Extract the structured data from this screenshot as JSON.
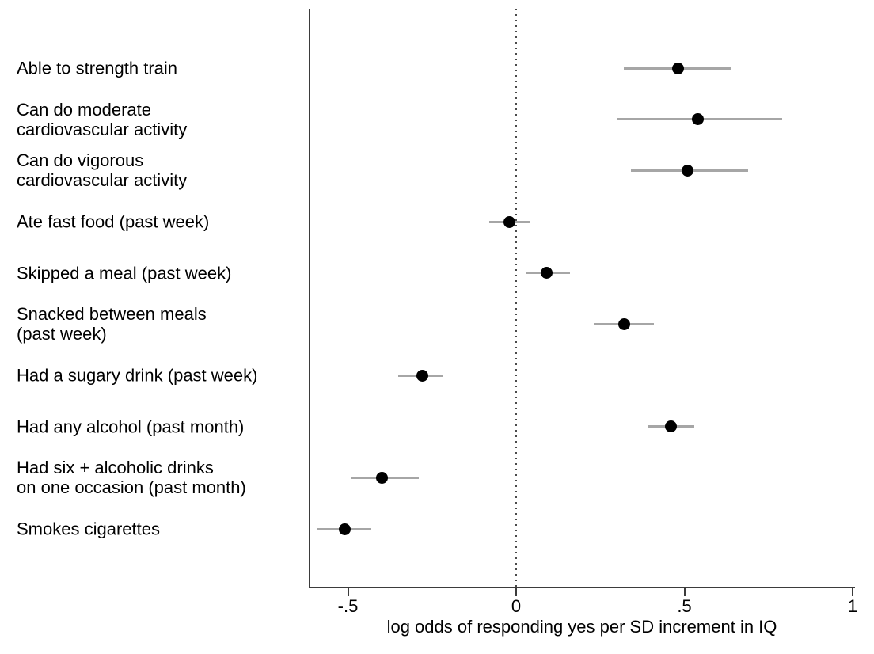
{
  "chart_data": {
    "type": "scatter",
    "subtype": "forest-plot",
    "title": "",
    "xlabel": "log odds of responding yes per SD increment in IQ",
    "ylabel": "",
    "xlim": [
      -0.62,
      1.0
    ],
    "x_ticks": [
      -0.5,
      0,
      0.5,
      1
    ],
    "x_tick_labels": [
      "-.5",
      "0",
      ".5",
      "1"
    ],
    "reference_line_x": 0,
    "grid": false,
    "legend": false,
    "marker_color": "#000000",
    "ci_color": "#a6a6a6",
    "axis_color": "#3b3b3b",
    "rows": [
      {
        "label": "Able to strength train",
        "lines": [
          "Able to strength train"
        ],
        "value": 0.48,
        "ci_low": 0.32,
        "ci_high": 0.64
      },
      {
        "label": "Can do moderate cardiovascular activity",
        "lines": [
          "Can do moderate",
          "cardiovascular activity"
        ],
        "value": 0.54,
        "ci_low": 0.3,
        "ci_high": 0.79
      },
      {
        "label": "Can do vigorous cardiovascular activity",
        "lines": [
          "Can do vigorous",
          "cardiovascular activity"
        ],
        "value": 0.51,
        "ci_low": 0.34,
        "ci_high": 0.69
      },
      {
        "label": "Ate fast food (past week)",
        "lines": [
          "Ate fast food (past week)"
        ],
        "value": -0.02,
        "ci_low": -0.08,
        "ci_high": 0.04
      },
      {
        "label": "Skipped a meal (past week)",
        "lines": [
          "Skipped a meal (past week)"
        ],
        "value": 0.09,
        "ci_low": 0.03,
        "ci_high": 0.16
      },
      {
        "label": "Snacked between meals (past week)",
        "lines": [
          "Snacked between meals",
          "(past week)"
        ],
        "value": 0.32,
        "ci_low": 0.23,
        "ci_high": 0.41
      },
      {
        "label": "Had a sugary drink (past week)",
        "lines": [
          "Had a sugary drink (past week)"
        ],
        "value": -0.28,
        "ci_low": -0.35,
        "ci_high": -0.22
      },
      {
        "label": "Had any alcohol (past month)",
        "lines": [
          "Had any alcohol (past month)"
        ],
        "value": 0.46,
        "ci_low": 0.39,
        "ci_high": 0.53
      },
      {
        "label": "Had six + alcoholic drinks on one occasion (past month)",
        "lines": [
          "Had six + alcoholic drinks",
          "on one occasion (past month)"
        ],
        "value": -0.4,
        "ci_low": -0.49,
        "ci_high": -0.29
      },
      {
        "label": "Smokes cigarettes",
        "lines": [
          "Smokes cigarettes"
        ],
        "value": -0.51,
        "ci_low": -0.59,
        "ci_high": -0.43
      }
    ]
  }
}
